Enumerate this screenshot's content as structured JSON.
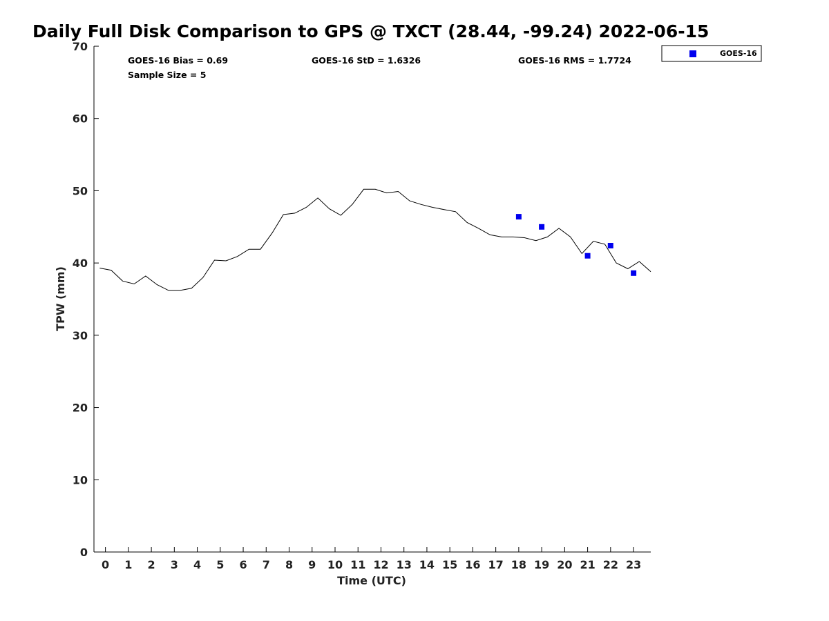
{
  "chart_data": {
    "type": "line",
    "title": "Daily Full Disk Comparison to GPS @ TXCT (28.44, -99.24) 2022-06-15",
    "xlabel": "Time (UTC)",
    "ylabel": "TPW (mm)",
    "xlim": [
      -0.5,
      23.75
    ],
    "ylim": [
      0,
      70
    ],
    "xticks": [
      "0",
      "1",
      "2",
      "3",
      "4",
      "5",
      "6",
      "7",
      "8",
      "9",
      "10",
      "11",
      "12",
      "13",
      "14",
      "15",
      "16",
      "17",
      "18",
      "19",
      "20",
      "21",
      "22",
      "23"
    ],
    "yticks": [
      "0",
      "10",
      "20",
      "30",
      "40",
      "50",
      "60",
      "70"
    ],
    "grid": false,
    "legend_position": "top-right",
    "stats": {
      "bias": "GOES-16 Bias = 0.69",
      "std": "GOES-16 StD = 1.6326",
      "rms": "GOES-16 RMS = 1.7724",
      "sample": "Sample Size = 5"
    },
    "series": [
      {
        "kind": "line",
        "color": "#000000",
        "x": [
          -0.25,
          0.25,
          0.75,
          1.25,
          1.75,
          2.25,
          2.75,
          3.25,
          3.75,
          4.25,
          4.75,
          5.25,
          5.75,
          6.25,
          6.75,
          7.25,
          7.75,
          8.25,
          8.75,
          9.25,
          9.75,
          10.25,
          10.75,
          11.25,
          11.75,
          12.25,
          12.75,
          13.25,
          13.75,
          14.25,
          14.75,
          15.25,
          15.75,
          16.25,
          16.75,
          17.25,
          17.75,
          18.25,
          18.75,
          19.25,
          19.75,
          20.25,
          20.75,
          21.25,
          21.75,
          22.25,
          22.75,
          23.25,
          23.75
        ],
        "y": [
          39.3,
          39.0,
          37.5,
          37.1,
          38.2,
          37.0,
          36.2,
          36.2,
          36.5,
          38.0,
          40.4,
          40.3,
          40.9,
          41.9,
          41.9,
          44.1,
          46.7,
          46.9,
          47.7,
          49.0,
          47.5,
          46.6,
          48.1,
          50.2,
          50.2,
          49.7,
          49.9,
          48.6,
          48.1,
          47.7,
          47.4,
          47.1,
          45.6,
          44.8,
          43.9,
          43.6,
          43.6,
          43.5,
          43.1,
          43.6,
          44.8,
          43.6,
          41.3,
          43.0,
          42.6,
          40.0,
          39.2,
          40.2,
          38.8
        ]
      },
      {
        "kind": "scatter",
        "name": "GOES-16",
        "color": "#0000ee",
        "x": [
          18.0,
          19.0,
          21.0,
          22.0,
          23.0
        ],
        "y": [
          46.4,
          45.0,
          41.0,
          42.4,
          38.6
        ]
      }
    ]
  }
}
